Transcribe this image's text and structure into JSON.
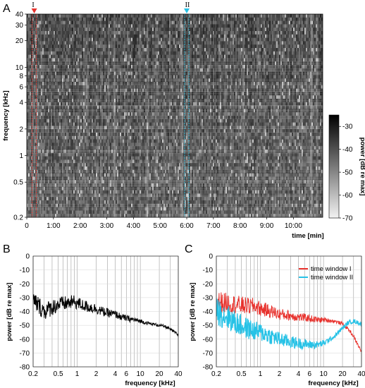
{
  "chart_data": [
    {
      "panel": "A",
      "type": "heatmap",
      "xlabel": "time [min]",
      "ylabel": "frequency [kHz]",
      "x_ticks": [
        "0",
        "1:00",
        "2:00",
        "3:00",
        "4:00",
        "5:00",
        "6:00",
        "7:00",
        "8:00",
        "9:00",
        "10:00"
      ],
      "x_tick_minutes": [
        0,
        1,
        2,
        3,
        4,
        5,
        6,
        7,
        8,
        9,
        10
      ],
      "xlim_minutes": [
        0,
        11.1
      ],
      "y_scale": "log",
      "ylim_khz": [
        0.2,
        40
      ],
      "y_ticks": [
        0.2,
        0.5,
        1,
        2,
        4,
        6,
        8,
        10,
        20,
        30,
        40
      ],
      "y_tick_labels": [
        "0.2",
        "0.5",
        "1",
        "2",
        "4",
        "6",
        "8",
        "10",
        "20",
        "30",
        "40"
      ],
      "colorbar": {
        "label": "power [dB re max]",
        "range": [
          -70,
          -25
        ],
        "ticks": [
          -30,
          -40,
          -50,
          -60,
          -70
        ],
        "tick_labels": [
          "-30",
          "-40",
          "-50",
          "-60",
          "-70"
        ]
      },
      "markers": [
        {
          "label": "I",
          "time_minutes": 0.28,
          "color": "#e8322d"
        },
        {
          "label": "II",
          "time_minutes": 6.0,
          "color": "#27c2e6"
        }
      ]
    },
    {
      "panel": "B",
      "type": "line",
      "xlabel": "frequency [kHz]",
      "ylabel": "power [dB re max]",
      "x_scale": "log",
      "xlim": [
        0.2,
        40
      ],
      "x_ticks": [
        0.2,
        0.5,
        1,
        2,
        4,
        6,
        10,
        20,
        40
      ],
      "x_tick_labels": [
        "0.2",
        "0.5",
        "1",
        "2",
        "4",
        "6",
        "10",
        "20",
        "40"
      ],
      "ylim": [
        -80,
        0
      ],
      "y_ticks": [
        0,
        -10,
        -20,
        -30,
        -40,
        -50,
        -60,
        -70,
        -80
      ],
      "y_tick_labels": [
        "0",
        "-10",
        "-20",
        "-30",
        "-40",
        "-50",
        "-60",
        "-70",
        "-80"
      ],
      "grid": "vertical log gridlines",
      "series": [
        {
          "color": "#000000",
          "x": [
            0.2,
            0.25,
            0.3,
            0.4,
            0.5,
            0.7,
            0.9,
            1.0,
            1.3,
            1.6,
            2.0,
            2.5,
            3,
            4,
            5,
            6,
            8,
            10,
            12,
            15,
            20,
            25,
            30,
            35,
            40
          ],
          "y": [
            -32,
            -36,
            -40,
            -37,
            -35,
            -34,
            -33,
            -34,
            -36,
            -37,
            -38,
            -40,
            -41,
            -42,
            -44,
            -45,
            -46,
            -47,
            -48,
            -49,
            -50,
            -51,
            -53,
            -55,
            -57
          ]
        }
      ]
    },
    {
      "panel": "C",
      "type": "line",
      "xlabel": "frequency [kHz]",
      "ylabel": "power [dB re max]",
      "x_scale": "log",
      "xlim": [
        0.2,
        40
      ],
      "x_ticks": [
        0.2,
        0.5,
        1,
        2,
        4,
        6,
        10,
        20,
        40
      ],
      "x_tick_labels": [
        "0.2",
        "0.5",
        "1",
        "2",
        "4",
        "6",
        "10",
        "20",
        "40"
      ],
      "ylim": [
        -80,
        0
      ],
      "y_ticks": [
        0,
        -10,
        -20,
        -30,
        -40,
        -50,
        -60,
        -70,
        -80
      ],
      "y_tick_labels": [
        "0",
        "-10",
        "-20",
        "-30",
        "-40",
        "-50",
        "-60",
        "-70",
        "-80"
      ],
      "legend_position": "top-right",
      "series": [
        {
          "name": "time window I",
          "color": "#e8322d",
          "x": [
            0.2,
            0.3,
            0.4,
            0.6,
            0.8,
            1.0,
            1.5,
            2,
            3,
            4,
            6,
            8,
            10,
            15,
            20,
            25,
            30,
            35,
            40
          ],
          "y": [
            -33,
            -34,
            -35,
            -36,
            -36,
            -38,
            -40,
            -42,
            -43,
            -44,
            -45,
            -46,
            -46,
            -47,
            -49,
            -53,
            -58,
            -64,
            -69
          ]
        },
        {
          "name": "time window II",
          "color": "#27c2e6",
          "x": [
            0.2,
            0.3,
            0.4,
            0.6,
            0.8,
            1.0,
            1.5,
            2,
            3,
            4,
            6,
            8,
            10,
            15,
            20,
            25,
            30,
            35,
            40
          ],
          "y": [
            -40,
            -44,
            -48,
            -52,
            -54,
            -55,
            -58,
            -60,
            -62,
            -63,
            -64,
            -64,
            -63,
            -58,
            -52,
            -48,
            -47,
            -48,
            -49
          ]
        }
      ]
    }
  ],
  "labels": {
    "panel_a": "A",
    "panel_b": "B",
    "panel_c": "C",
    "marker_i": "I",
    "marker_ii": "II",
    "a_xlabel": "time [min]",
    "a_ylabel": "frequency [kHz]",
    "colorbar_label": "power [dB re max]",
    "b_xlabel": "frequency [kHz]",
    "b_ylabel": "power [dB re max]",
    "c_xlabel": "frequency [kHz]",
    "c_ylabel": "power [dB re max]",
    "legend_i": "time window I",
    "legend_ii": "time window II"
  }
}
